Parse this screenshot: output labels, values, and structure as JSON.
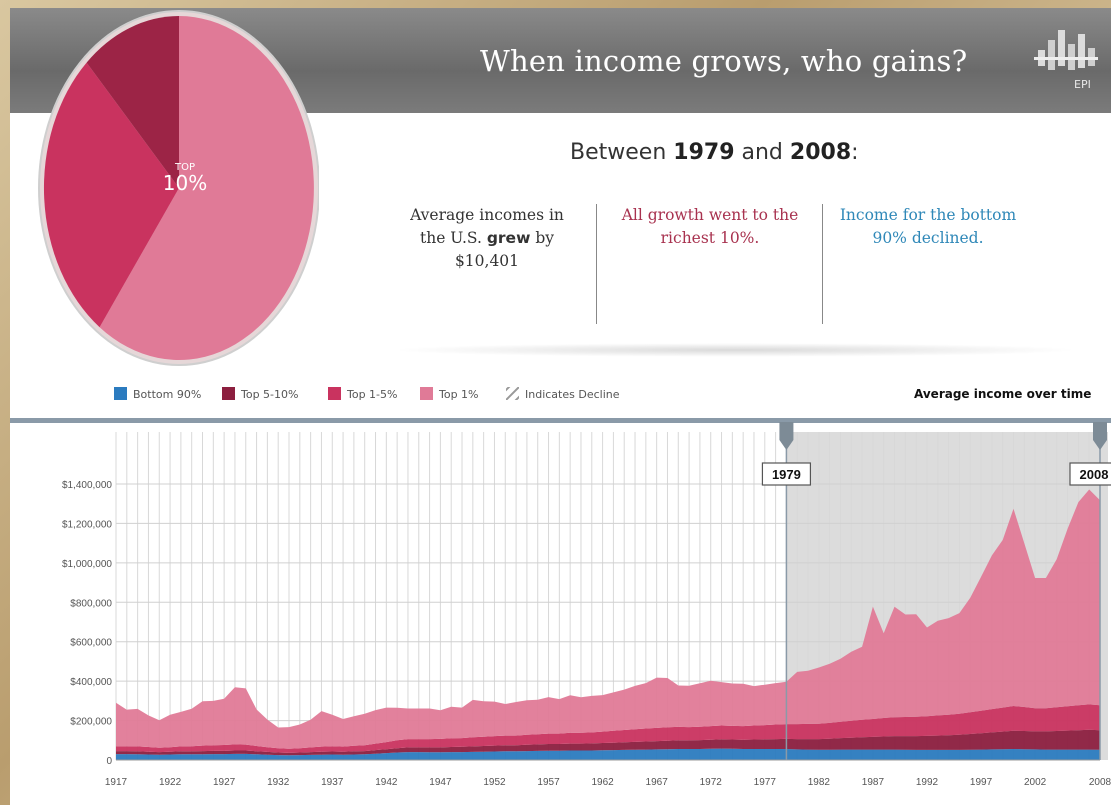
{
  "header": {
    "title": "When income grows, who gains?",
    "logo_text": "EPI",
    "logo_icon": "bar-chart-logo-icon"
  },
  "pie": {
    "label_top": "TOP",
    "label_pct": "10%",
    "slices": [
      {
        "name": "Top 1%",
        "share": 0.6,
        "color": "#e07a97"
      },
      {
        "name": "Top 1-5%",
        "share": 0.28,
        "color": "#c9335f"
      },
      {
        "name": "Top 5-10%",
        "share": 0.12,
        "color": "#9c2446"
      }
    ]
  },
  "summary": {
    "subtitle_pre": "Between ",
    "year_start": "1979",
    "subtitle_mid": " and ",
    "year_end": "2008",
    "subtitle_post": ":",
    "col1_line1": "Average incomes in",
    "col1_line2a": "the U.S. ",
    "col1_line2b": "grew",
    "col1_line2c": " by",
    "col1_line3": "$10,401",
    "col2_line1": "All growth went to the",
    "col2_line2": "richest 10%.",
    "col3_line1": "Income for the bottom",
    "col3_line2": "90% declined."
  },
  "legend": {
    "items": [
      {
        "label": "Bottom 90%",
        "color": "#2b7bbf"
      },
      {
        "label": "Top 5-10%",
        "color": "#8c1f3f"
      },
      {
        "label": "Top 1-5%",
        "color": "#c9335f"
      },
      {
        "label": "Top 1%",
        "color": "#e07a97"
      },
      {
        "label": "Indicates Decline",
        "color": "#bbbbbb"
      }
    ],
    "chart_heading": "Average income over time"
  },
  "chart_data": {
    "type": "area",
    "stacked": true,
    "title": "Average income over time",
    "x": [
      1917,
      1918,
      1919,
      1920,
      1921,
      1922,
      1923,
      1924,
      1925,
      1926,
      1927,
      1928,
      1929,
      1930,
      1931,
      1932,
      1933,
      1934,
      1935,
      1936,
      1937,
      1938,
      1939,
      1940,
      1941,
      1942,
      1943,
      1944,
      1945,
      1946,
      1947,
      1948,
      1949,
      1950,
      1951,
      1952,
      1953,
      1954,
      1955,
      1956,
      1957,
      1958,
      1959,
      1960,
      1961,
      1962,
      1963,
      1964,
      1965,
      1966,
      1967,
      1968,
      1969,
      1970,
      1971,
      1972,
      1973,
      1974,
      1975,
      1976,
      1977,
      1978,
      1979,
      1980,
      1981,
      1982,
      1983,
      1984,
      1985,
      1986,
      1987,
      1988,
      1989,
      1990,
      1991,
      1992,
      1993,
      1994,
      1995,
      1996,
      1997,
      1998,
      1999,
      2000,
      2001,
      2002,
      2003,
      2004,
      2005,
      2006,
      2007,
      2008
    ],
    "series": [
      {
        "name": "Bottom 90%",
        "color": "#2b7bbf",
        "values": [
          30000,
          30000,
          29000,
          28000,
          27000,
          28000,
          29000,
          29000,
          29000,
          30000,
          30000,
          31000,
          31000,
          29000,
          27000,
          25000,
          24000,
          25000,
          26000,
          27000,
          28000,
          27000,
          28000,
          29000,
          32000,
          35000,
          38000,
          40000,
          40000,
          39000,
          39000,
          40000,
          40000,
          41000,
          42000,
          43000,
          44000,
          44000,
          45000,
          46000,
          47000,
          47000,
          48000,
          48000,
          48000,
          49000,
          50000,
          51000,
          52000,
          53000,
          54000,
          55000,
          56000,
          56000,
          56000,
          57000,
          58000,
          57000,
          56000,
          56000,
          56000,
          56000,
          56000,
          54000,
          53000,
          52000,
          52000,
          53000,
          53000,
          53000,
          53000,
          53000,
          53000,
          52000,
          51000,
          51000,
          51000,
          51000,
          51000,
          52000,
          53000,
          54000,
          55000,
          56000,
          55000,
          54000,
          53000,
          53000,
          53000,
          53000,
          53000,
          52000
        ]
      },
      {
        "name": "Top 5-10%",
        "color": "#8c1f3f",
        "values": [
          15000,
          15000,
          15000,
          14000,
          13000,
          14000,
          15000,
          15000,
          16000,
          16000,
          16000,
          17000,
          17000,
          15000,
          14000,
          13000,
          12000,
          13000,
          14000,
          15000,
          15000,
          15000,
          16000,
          16000,
          18000,
          20000,
          22000,
          24000,
          24000,
          25000,
          25000,
          26000,
          27000,
          28000,
          29000,
          30000,
          31000,
          31000,
          32000,
          33000,
          34000,
          34000,
          35000,
          35000,
          36000,
          37000,
          38000,
          39000,
          40000,
          41000,
          42000,
          43000,
          44000,
          44000,
          45000,
          46000,
          47000,
          47000,
          47000,
          48000,
          49000,
          50000,
          51000,
          52000,
          53000,
          54000,
          56000,
          58000,
          60000,
          62000,
          64000,
          66000,
          68000,
          69000,
          70000,
          71000,
          73000,
          75000,
          77000,
          80000,
          83000,
          86000,
          89000,
          92000,
          92000,
          91000,
          92000,
          94000,
          96000,
          98000,
          100000,
          99000
        ]
      },
      {
        "name": "Top 1-5%",
        "color": "#c9335f",
        "values": [
          25000,
          25000,
          25000,
          24000,
          22000,
          23000,
          25000,
          26000,
          28000,
          29000,
          30000,
          31000,
          30000,
          27000,
          24000,
          22000,
          21000,
          22000,
          24000,
          26000,
          27000,
          26000,
          28000,
          30000,
          33000,
          36000,
          40000,
          42000,
          42000,
          42000,
          43000,
          44000,
          44000,
          46000,
          47000,
          48000,
          49000,
          49000,
          51000,
          52000,
          53000,
          53000,
          55000,
          55000,
          56000,
          58000,
          60000,
          62000,
          64000,
          66000,
          67000,
          68000,
          68000,
          67000,
          68000,
          69000,
          70000,
          69000,
          69000,
          71000,
          72000,
          74000,
          75000,
          76000,
          77000,
          78000,
          80000,
          83000,
          86000,
          89000,
          91000,
          94000,
          96000,
          97000,
          98000,
          100000,
          102000,
          104000,
          107000,
          110000,
          114000,
          118000,
          122000,
          126000,
          122000,
          118000,
          118000,
          121000,
          124000,
          127000,
          129000,
          127000
        ]
      },
      {
        "name": "Top 1%",
        "color": "#e07a97",
        "values": [
          220000,
          185000,
          190000,
          160000,
          140000,
          165000,
          175000,
          190000,
          225000,
          225000,
          235000,
          290000,
          285000,
          185000,
          140000,
          105000,
          110000,
          120000,
          140000,
          180000,
          160000,
          140000,
          150000,
          160000,
          170000,
          175000,
          165000,
          155000,
          155000,
          155000,
          145000,
          160000,
          155000,
          190000,
          180000,
          175000,
          160000,
          170000,
          175000,
          175000,
          185000,
          175000,
          190000,
          180000,
          185000,
          185000,
          195000,
          205000,
          220000,
          230000,
          255000,
          250000,
          210000,
          210000,
          220000,
          230000,
          220000,
          215000,
          215000,
          200000,
          205000,
          210000,
          215000,
          265000,
          270000,
          285000,
          300000,
          320000,
          350000,
          370000,
          570000,
          430000,
          560000,
          520000,
          520000,
          450000,
          480000,
          490000,
          510000,
          580000,
          680000,
          780000,
          850000,
          1000000,
          830000,
          660000,
          660000,
          750000,
          900000,
          1030000,
          1090000,
          1040000
        ]
      }
    ],
    "ylim": [
      0,
      1400000
    ],
    "y_ticks": [
      0,
      200000,
      400000,
      600000,
      800000,
      1000000,
      1200000,
      1400000
    ],
    "y_tick_labels": [
      "0",
      "$200,000",
      "$400,000",
      "$600,000",
      "$800,000",
      "$1,000,000",
      "$1,200,000",
      "$1,400,000"
    ],
    "x_ticks": [
      1917,
      1922,
      1927,
      1932,
      1937,
      1942,
      1947,
      1952,
      1957,
      1962,
      1967,
      1972,
      1977,
      1982,
      1987,
      1992,
      1997,
      2002,
      2008
    ],
    "highlight_start": 1979,
    "highlight_end": 2008,
    "highlight_labels": [
      "1979",
      "2008"
    ],
    "grid": true
  }
}
